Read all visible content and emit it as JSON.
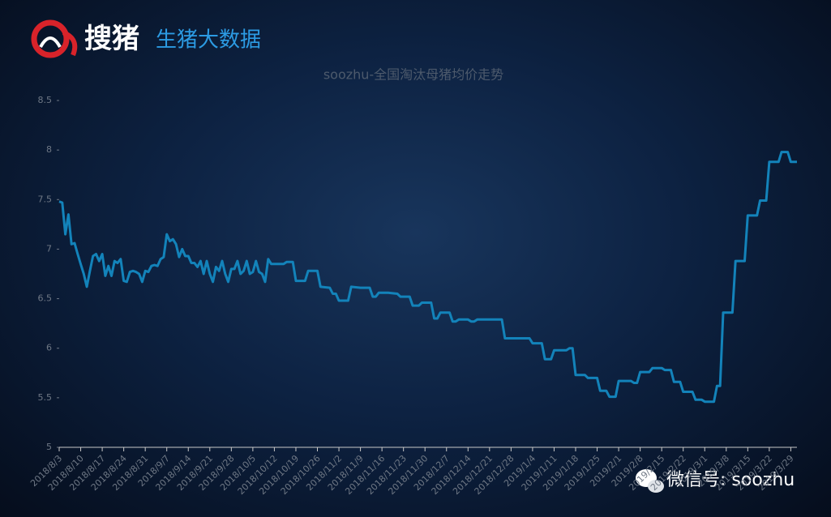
{
  "header": {
    "brand": "搜猪",
    "subtitle": "生猪大数据"
  },
  "watermark": "微信号: soozhu",
  "chart_data": {
    "type": "line",
    "title": "soozhu-全国淘汰母猪均价走势",
    "color": "#1383ba",
    "xlim": [
      "2018/8/3",
      "2019/3/31"
    ],
    "xticks": [
      "2018/8/3",
      "2018/8/10",
      "2018/8/17",
      "2018/8/24",
      "2018/8/31",
      "2018/9/7",
      "2018/9/14",
      "2018/9/21",
      "2018/9/28",
      "2018/10/5",
      "2018/10/12",
      "2018/10/19",
      "2018/10/26",
      "2018/11/2",
      "2018/11/9",
      "2018/11/16",
      "2018/11/23",
      "2018/11/30",
      "2018/12/7",
      "2018/12/14",
      "2018/12/21",
      "2018/12/28",
      "2019/1/4",
      "2019/1/11",
      "2019/1/18",
      "2019/1/25",
      "2019/2/1",
      "2019/2/8",
      "2019/2/15",
      "2019/2/22",
      "2019/3/1",
      "2019/3/8",
      "2019/3/15",
      "2019/3/22",
      "2019/3/29"
    ],
    "ylim": [
      5,
      8.5
    ],
    "yticks": [
      5,
      5.5,
      6,
      6.5,
      7,
      7.5,
      8,
      8.5
    ],
    "x": [
      "2018/8/3",
      "2018/8/4",
      "2018/8/5",
      "2018/8/6",
      "2018/8/7",
      "2018/8/8",
      "2018/8/9",
      "2018/8/10",
      "2018/8/11",
      "2018/8/12",
      "2018/8/13",
      "2018/8/14",
      "2018/8/15",
      "2018/8/16",
      "2018/8/17",
      "2018/8/18",
      "2018/8/19",
      "2018/8/20",
      "2018/8/21",
      "2018/8/22",
      "2018/8/23",
      "2018/8/24",
      "2018/8/25",
      "2018/8/26",
      "2018/8/27",
      "2018/8/28",
      "2018/8/29",
      "2018/8/30",
      "2018/8/31",
      "2018/9/1",
      "2018/9/2",
      "2018/9/3",
      "2018/9/4",
      "2018/9/5",
      "2018/9/6",
      "2018/9/7",
      "2018/9/8",
      "2018/9/9",
      "2018/9/10",
      "2018/9/11",
      "2018/9/12",
      "2018/9/13",
      "2018/9/14",
      "2018/9/15",
      "2018/9/16",
      "2018/9/17",
      "2018/9/18",
      "2018/9/19",
      "2018/9/20",
      "2018/9/21",
      "2018/9/22",
      "2018/9/23",
      "2018/9/24",
      "2018/9/25",
      "2018/9/26",
      "2018/9/27",
      "2018/9/28",
      "2018/9/29",
      "2018/9/30",
      "2018/10/1",
      "2018/10/2",
      "2018/10/3",
      "2018/10/4",
      "2018/10/5",
      "2018/10/6",
      "2018/10/7",
      "2018/10/8",
      "2018/10/9",
      "2018/10/10",
      "2018/10/11",
      "2018/10/15",
      "2018/10/16",
      "2018/10/18",
      "2018/10/19",
      "2018/10/22",
      "2018/10/23",
      "2018/10/26",
      "2018/10/27",
      "2018/10/30",
      "2018/10/31",
      "2018/11/1",
      "2018/11/2",
      "2018/11/5",
      "2018/11/6",
      "2018/11/9",
      "2018/11/12",
      "2018/11/13",
      "2018/11/14",
      "2018/11/15",
      "2018/11/18",
      "2018/11/21",
      "2018/11/22",
      "2018/11/25",
      "2018/11/26",
      "2018/11/28",
      "2018/11/29",
      "2018/12/2",
      "2018/12/3",
      "2018/12/4",
      "2018/12/5",
      "2018/12/8",
      "2018/12/9",
      "2018/12/10",
      "2018/12/11",
      "2018/12/14",
      "2018/12/15",
      "2018/12/16",
      "2018/12/17",
      "2018/12/25",
      "2018/12/26",
      "2019/1/3",
      "2019/1/4",
      "2019/1/7",
      "2019/1/8",
      "2019/1/10",
      "2019/1/11",
      "2019/1/15",
      "2019/1/16",
      "2019/1/17",
      "2019/1/18",
      "2019/1/21",
      "2019/1/22",
      "2019/1/25",
      "2019/1/26",
      "2019/1/28",
      "2019/1/29",
      "2019/1/31",
      "2019/2/1",
      "2019/2/5",
      "2019/2/6",
      "2019/2/7",
      "2019/2/8",
      "2019/2/11",
      "2019/2/12",
      "2019/2/15",
      "2019/2/16",
      "2019/2/18",
      "2019/2/19",
      "2019/2/21",
      "2019/2/22",
      "2019/2/25",
      "2019/2/26",
      "2019/2/28",
      "2019/3/1",
      "2019/3/4",
      "2019/3/5",
      "2019/3/6",
      "2019/3/7",
      "2019/3/10",
      "2019/3/11",
      "2019/3/14",
      "2019/3/15",
      "2019/3/18",
      "2019/3/19",
      "2019/3/21",
      "2019/3/22",
      "2019/3/25",
      "2019/3/26",
      "2019/3/28",
      "2019/3/29",
      "2019/3/31"
    ],
    "values": [
      7.48,
      7.47,
      7.15,
      7.35,
      7.05,
      7.06,
      6.95,
      6.85,
      6.75,
      6.62,
      6.78,
      6.93,
      6.95,
      6.88,
      6.95,
      6.73,
      6.83,
      6.73,
      6.88,
      6.86,
      6.9,
      6.68,
      6.67,
      6.77,
      6.78,
      6.77,
      6.75,
      6.67,
      6.78,
      6.77,
      6.83,
      6.84,
      6.83,
      6.9,
      6.92,
      7.15,
      7.08,
      7.1,
      7.05,
      6.92,
      7.0,
      6.93,
      6.93,
      6.86,
      6.86,
      6.82,
      6.88,
      6.75,
      6.88,
      6.75,
      6.67,
      6.82,
      6.78,
      6.88,
      6.75,
      6.67,
      6.8,
      6.8,
      6.88,
      6.75,
      6.78,
      6.88,
      6.75,
      6.77,
      6.88,
      6.77,
      6.75,
      6.67,
      6.9,
      6.85,
      6.85,
      6.87,
      6.87,
      6.68,
      6.68,
      6.78,
      6.78,
      6.62,
      6.61,
      6.55,
      6.55,
      6.48,
      6.48,
      6.62,
      6.61,
      6.61,
      6.52,
      6.52,
      6.56,
      6.56,
      6.55,
      6.52,
      6.52,
      6.43,
      6.43,
      6.46,
      6.46,
      6.3,
      6.3,
      6.36,
      6.36,
      6.27,
      6.27,
      6.29,
      6.29,
      6.27,
      6.27,
      6.29,
      6.29,
      6.1,
      6.1,
      6.05,
      6.05,
      5.89,
      5.89,
      5.98,
      5.98,
      6.0,
      6.0,
      5.73,
      5.73,
      5.7,
      5.7,
      5.57,
      5.57,
      5.51,
      5.51,
      5.67,
      5.67,
      5.65,
      5.65,
      5.76,
      5.76,
      5.8,
      5.8,
      5.78,
      5.78,
      5.66,
      5.66,
      5.56,
      5.56,
      5.48,
      5.48,
      5.46,
      5.46,
      5.62,
      5.62,
      6.36,
      6.36,
      6.88,
      6.88,
      7.34,
      7.34,
      7.49,
      7.49,
      7.88,
      7.88,
      7.98,
      7.98,
      7.88,
      7.88
    ]
  }
}
